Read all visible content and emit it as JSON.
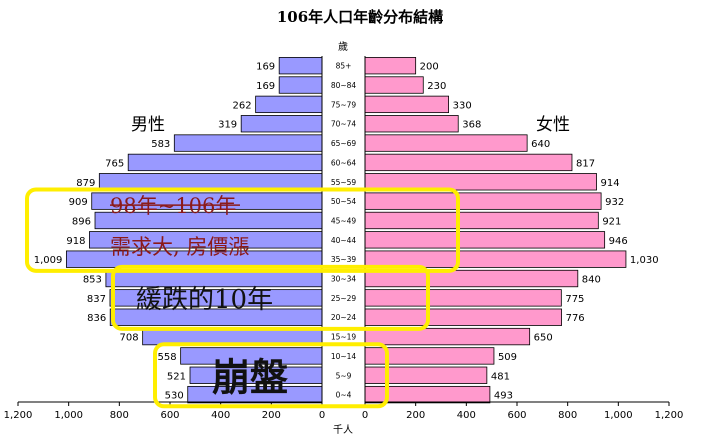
{
  "chart_data": {
    "type": "bar",
    "subtype": "population-pyramid",
    "title": "106年人口年齡分布結構",
    "age_axis_label": "歲",
    "x_axis_label": "千人",
    "left_label": "男性",
    "right_label": "女性",
    "categories": [
      "85+",
      "80~84",
      "75~79",
      "70~74",
      "65~69",
      "60~64",
      "55~59",
      "50~54",
      "45~49",
      "40~44",
      "35~39",
      "30~34",
      "25~29",
      "20~24",
      "15~19",
      "10~14",
      "5~9",
      "0~4"
    ],
    "series": [
      {
        "name": "男性",
        "values": [
          169,
          169,
          262,
          319,
          583,
          765,
          879,
          909,
          896,
          918,
          1009,
          853,
          837,
          836,
          708,
          558,
          521,
          530
        ],
        "labels": [
          "169",
          "169",
          "262",
          "319",
          "583",
          "765",
          "879",
          "909",
          "896",
          "918",
          "1,009",
          "853",
          "837",
          "836",
          "708",
          "558",
          "521",
          "530"
        ]
      },
      {
        "name": "女性",
        "values": [
          200,
          230,
          330,
          368,
          640,
          817,
          914,
          932,
          921,
          946,
          1030,
          840,
          775,
          776,
          650,
          509,
          481,
          493
        ],
        "labels": [
          "200",
          "230",
          "330",
          "368",
          "640",
          "817",
          "914",
          "932",
          "921",
          "946",
          "1,030",
          "840",
          "775",
          "776",
          "650",
          "509",
          "481",
          "493"
        ]
      }
    ],
    "xlim": [
      0,
      1200
    ],
    "x_ticks_left": [
      "1,200",
      "1,000",
      "800",
      "600",
      "400",
      "200",
      "0"
    ],
    "x_ticks_right": [
      "0",
      "200",
      "400",
      "600",
      "800",
      "1,000",
      "1,200"
    ],
    "colors": {
      "male": "#9999ff",
      "female": "#ff99cc",
      "highlight_box": "#ffee00",
      "annotation_red": "#8b1a1a"
    },
    "annotations": [
      {
        "id": "a",
        "text": "98年~106年",
        "covers": [
          "50~54",
          "45~49",
          "40~44",
          "35~39"
        ]
      },
      {
        "id": "b",
        "text": "需求大, 房價漲",
        "covers": [
          "50~54",
          "45~49",
          "40~44",
          "35~39"
        ]
      },
      {
        "id": "c",
        "text": "緩跌的10年",
        "covers": [
          "30~34",
          "25~29",
          "20~24"
        ]
      },
      {
        "id": "d",
        "text": "崩盤",
        "covers": [
          "10~14",
          "5~9",
          "0~4"
        ]
      }
    ]
  }
}
